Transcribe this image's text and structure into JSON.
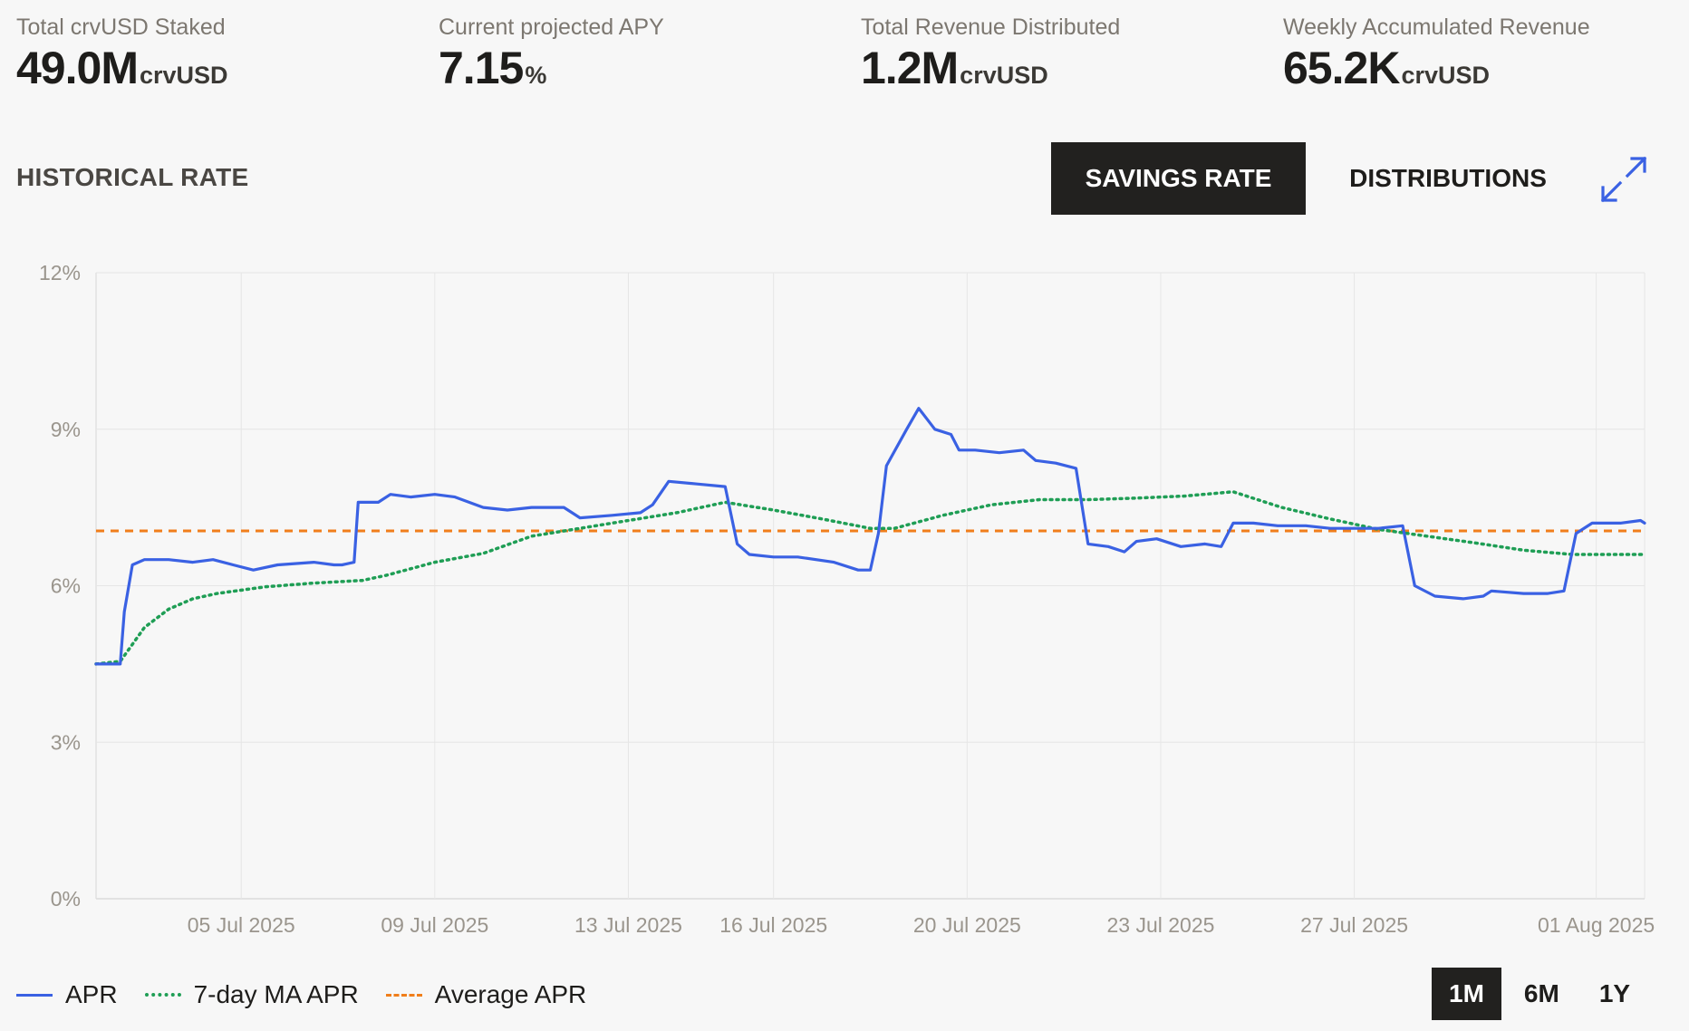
{
  "stats": [
    {
      "label": "Total crvUSD Staked",
      "value": "49.0M",
      "unit": "crvUSD"
    },
    {
      "label": "Current projected APY",
      "value": "7.15",
      "unit": "%"
    },
    {
      "label": "Total Revenue Distributed",
      "value": "1.2M",
      "unit": "crvUSD"
    },
    {
      "label": "Weekly Accumulated Revenue",
      "value": "65.2K",
      "unit": "crvUSD"
    }
  ],
  "section_title": "HISTORICAL RATE",
  "tabs": [
    {
      "label": "SAVINGS RATE",
      "active": true
    },
    {
      "label": "DISTRIBUTIONS",
      "active": false
    }
  ],
  "expand_icon": "expand-arrows-icon",
  "accent_color": "#3a61e3",
  "legend": [
    {
      "label": "APR",
      "color": "#3a61e3",
      "style": "solid"
    },
    {
      "label": "7-day MA APR",
      "color": "#1f9e55",
      "style": "dotted"
    },
    {
      "label": "Average APR",
      "color": "#f07e1b",
      "style": "dashed"
    }
  ],
  "ranges": [
    {
      "label": "1M",
      "active": true
    },
    {
      "label": "6M",
      "active": false
    },
    {
      "label": "1Y",
      "active": false
    }
  ],
  "chart_data": {
    "type": "line",
    "ylim": [
      0,
      12
    ],
    "y_ticks": [
      "0%",
      "3%",
      "6%",
      "9%",
      "12%"
    ],
    "x_range": [
      "2025-07-01",
      "2025-08-01"
    ],
    "x_ticks": [
      {
        "label": "05 Jul 2025",
        "date": "2025-07-04"
      },
      {
        "label": "09 Jul 2025",
        "date": "2025-07-08"
      },
      {
        "label": "13 Jul 2025",
        "date": "2025-07-12"
      },
      {
        "label": "16 Jul 2025",
        "date": "2025-07-15"
      },
      {
        "label": "20 Jul 2025",
        "date": "2025-07-19"
      },
      {
        "label": "23 Jul 2025",
        "date": "2025-07-23"
      },
      {
        "label": "27 Jul 2025",
        "date": "2025-07-27"
      },
      {
        "label": "01 Aug 2025",
        "date": "2025-08-01"
      }
    ],
    "grid": true,
    "legend_position": "bottom-left",
    "series": [
      {
        "name": "APR",
        "points": [
          [
            "2025-07-01 00:00",
            4.5
          ],
          [
            "2025-07-01 12:00",
            4.5
          ],
          [
            "2025-07-01 14:00",
            5.5
          ],
          [
            "2025-07-01 18:00",
            6.4
          ],
          [
            "2025-07-02 00:00",
            6.5
          ],
          [
            "2025-07-02 12:00",
            6.5
          ],
          [
            "2025-07-03 00:00",
            6.45
          ],
          [
            "2025-07-03 10:00",
            6.5
          ],
          [
            "2025-07-03 20:00",
            6.4
          ],
          [
            "2025-07-04 06:00",
            6.3
          ],
          [
            "2025-07-04 18:00",
            6.4
          ],
          [
            "2025-07-05 12:00",
            6.45
          ],
          [
            "2025-07-05 22:00",
            6.4
          ],
          [
            "2025-07-06 02:00",
            6.4
          ],
          [
            "2025-07-06 08:00",
            6.45
          ],
          [
            "2025-07-06 10:00",
            7.6
          ],
          [
            "2025-07-06 20:00",
            7.6
          ],
          [
            "2025-07-07 02:00",
            7.75
          ],
          [
            "2025-07-07 12:00",
            7.7
          ],
          [
            "2025-07-08 00:00",
            7.75
          ],
          [
            "2025-07-08 10:00",
            7.7
          ],
          [
            "2025-07-09 00:00",
            7.5
          ],
          [
            "2025-07-09 12:00",
            7.45
          ],
          [
            "2025-07-10 00:00",
            7.5
          ],
          [
            "2025-07-10 16:00",
            7.5
          ],
          [
            "2025-07-11 00:00",
            7.3
          ],
          [
            "2025-07-11 16:00",
            7.35
          ],
          [
            "2025-07-12 06:00",
            7.4
          ],
          [
            "2025-07-12 12:00",
            7.55
          ],
          [
            "2025-07-12 20:00",
            8.0
          ],
          [
            "2025-07-13 10:00",
            7.95
          ],
          [
            "2025-07-14 00:00",
            7.9
          ],
          [
            "2025-07-14 06:00",
            6.8
          ],
          [
            "2025-07-14 12:00",
            6.6
          ],
          [
            "2025-07-15 00:00",
            6.55
          ],
          [
            "2025-07-15 12:00",
            6.55
          ],
          [
            "2025-07-16 06:00",
            6.45
          ],
          [
            "2025-07-16 18:00",
            6.3
          ],
          [
            "2025-07-17 00:00",
            6.3
          ],
          [
            "2025-07-17 04:00",
            7.0
          ],
          [
            "2025-07-17 08:00",
            8.3
          ],
          [
            "2025-07-17 18:00",
            9.0
          ],
          [
            "2025-07-18 00:00",
            9.4
          ],
          [
            "2025-07-18 08:00",
            9.0
          ],
          [
            "2025-07-18 16:00",
            8.9
          ],
          [
            "2025-07-18 20:00",
            8.6
          ],
          [
            "2025-07-19 04:00",
            8.6
          ],
          [
            "2025-07-19 16:00",
            8.55
          ],
          [
            "2025-07-20 04:00",
            8.6
          ],
          [
            "2025-07-20 10:00",
            8.4
          ],
          [
            "2025-07-20 20:00",
            8.35
          ],
          [
            "2025-07-21 06:00",
            8.25
          ],
          [
            "2025-07-21 12:00",
            6.8
          ],
          [
            "2025-07-21 22:00",
            6.75
          ],
          [
            "2025-07-22 06:00",
            6.65
          ],
          [
            "2025-07-22 12:00",
            6.85
          ],
          [
            "2025-07-22 22:00",
            6.9
          ],
          [
            "2025-07-23 10:00",
            6.75
          ],
          [
            "2025-07-23 22:00",
            6.8
          ],
          [
            "2025-07-24 06:00",
            6.75
          ],
          [
            "2025-07-24 12:00",
            7.2
          ],
          [
            "2025-07-24 22:00",
            7.2
          ],
          [
            "2025-07-25 10:00",
            7.15
          ],
          [
            "2025-07-26 00:00",
            7.15
          ],
          [
            "2025-07-26 12:00",
            7.1
          ],
          [
            "2025-07-27 00:00",
            7.1
          ],
          [
            "2025-07-27 12:00",
            7.1
          ],
          [
            "2025-07-28 00:00",
            7.15
          ],
          [
            "2025-07-28 06:00",
            6.0
          ],
          [
            "2025-07-28 16:00",
            5.8
          ],
          [
            "2025-07-29 06:00",
            5.75
          ],
          [
            "2025-07-29 16:00",
            5.8
          ],
          [
            "2025-07-29 20:00",
            5.9
          ],
          [
            "2025-07-30 12:00",
            5.85
          ],
          [
            "2025-07-31 00:00",
            5.85
          ],
          [
            "2025-07-31 08:00",
            5.9
          ],
          [
            "2025-07-31 14:00",
            7.0
          ],
          [
            "2025-07-31 22:00",
            7.2
          ],
          [
            "2025-08-01 12:00",
            7.2
          ],
          [
            "2025-08-01 22:00",
            7.25
          ],
          [
            "2025-08-02 00:00",
            7.2
          ]
        ]
      },
      {
        "name": "7-day MA APR",
        "points": [
          [
            "2025-07-01 00:00",
            4.5
          ],
          [
            "2025-07-01 12:00",
            4.55
          ],
          [
            "2025-07-02 00:00",
            5.2
          ],
          [
            "2025-07-02 12:00",
            5.55
          ],
          [
            "2025-07-03 00:00",
            5.75
          ],
          [
            "2025-07-03 12:00",
            5.85
          ],
          [
            "2025-07-04 12:00",
            5.98
          ],
          [
            "2025-07-05 12:00",
            6.05
          ],
          [
            "2025-07-06 12:00",
            6.1
          ],
          [
            "2025-07-07 00:00",
            6.2
          ],
          [
            "2025-07-08 00:00",
            6.45
          ],
          [
            "2025-07-09 00:00",
            6.62
          ],
          [
            "2025-07-10 00:00",
            6.95
          ],
          [
            "2025-07-11 00:00",
            7.1
          ],
          [
            "2025-07-12 00:00",
            7.25
          ],
          [
            "2025-07-13 00:00",
            7.4
          ],
          [
            "2025-07-14 00:00",
            7.6
          ],
          [
            "2025-07-15 00:00",
            7.45
          ],
          [
            "2025-07-16 00:00",
            7.28
          ],
          [
            "2025-07-17 00:00",
            7.1
          ],
          [
            "2025-07-17 12:00",
            7.1
          ],
          [
            "2025-07-18 12:00",
            7.35
          ],
          [
            "2025-07-19 12:00",
            7.55
          ],
          [
            "2025-07-20 12:00",
            7.65
          ],
          [
            "2025-07-21 12:00",
            7.65
          ],
          [
            "2025-07-22 12:00",
            7.68
          ],
          [
            "2025-07-23 12:00",
            7.72
          ],
          [
            "2025-07-24 12:00",
            7.8
          ],
          [
            "2025-07-25 12:00",
            7.5
          ],
          [
            "2025-07-26 12:00",
            7.28
          ],
          [
            "2025-07-27 12:00",
            7.08
          ],
          [
            "2025-07-28 12:00",
            6.95
          ],
          [
            "2025-07-29 12:00",
            6.82
          ],
          [
            "2025-07-30 12:00",
            6.68
          ],
          [
            "2025-07-31 12:00",
            6.6
          ],
          [
            "2025-08-02 00:00",
            6.6
          ]
        ]
      },
      {
        "name": "Average APR",
        "points": [
          [
            "2025-07-01 00:00",
            7.05
          ],
          [
            "2025-08-02 00:00",
            7.05
          ]
        ]
      }
    ]
  }
}
